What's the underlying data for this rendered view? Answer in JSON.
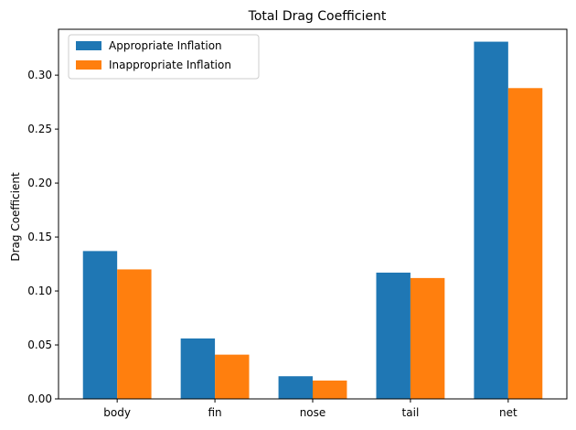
{
  "chart_data": {
    "type": "bar",
    "title": "Total Drag Coefficient",
    "xlabel": "",
    "ylabel": "Drag Coefficient",
    "categories": [
      "body",
      "fin",
      "nose",
      "tail",
      "net"
    ],
    "series": [
      {
        "name": "Appropriate Inflation",
        "color": "#1f77b4",
        "values": [
          0.137,
          0.056,
          0.021,
          0.117,
          0.331
        ]
      },
      {
        "name": "Inappropriate Inflation",
        "color": "#ff7f0e",
        "values": [
          0.12,
          0.041,
          0.017,
          0.112,
          0.288
        ]
      }
    ],
    "ylim": [
      0,
      0.3425
    ],
    "yticks": [
      "0.00",
      "0.05",
      "0.10",
      "0.15",
      "0.20",
      "0.25",
      "0.30"
    ],
    "grid": false,
    "legend_position": "top-left"
  }
}
